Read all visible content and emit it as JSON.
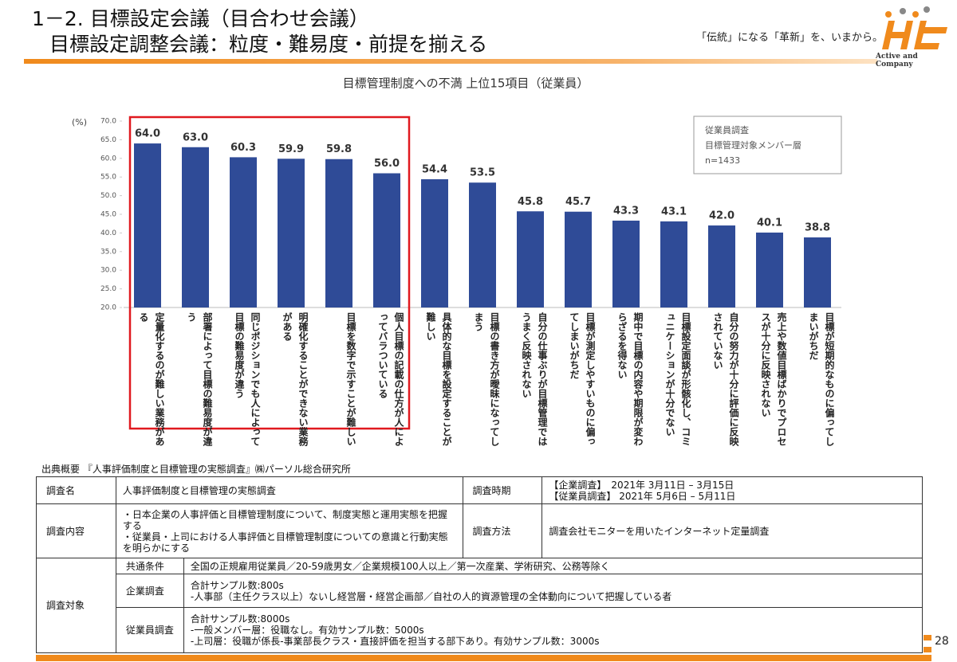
{
  "header": {
    "title": "1－2. 目標設定会議（目合わせ会議）",
    "subtitle": "目標設定調整会議：粒度・難易度・前提を揃える",
    "tagline": "「伝統」になる「革新」を、いまから。",
    "logo_text": "Active and Company",
    "page_number": "28"
  },
  "chart_data": {
    "type": "bar",
    "title": "目標管理制度への不満 上位15項目（従業員）",
    "y_unit": "(%)",
    "categories": [
      "定量化するのが難しい業務がある",
      "部署によって目標の難易度が違う",
      "同じポジションでも人によって目標の難易度が違う",
      "明確化することができない業務がある",
      "目標を数字で示すことが難しい",
      "個人目標の記載の仕方が人によってバラついている",
      "具体的な目標を設定することが難しい",
      "目標の書き方が曖昧になってしまう",
      "自分の仕事ぶりが目標管理ではうまく反映されない",
      "目標が測定しやすいものに偏ってしまいがちだ",
      "期中で目標の内容や期限が変わらざるを得ない",
      "目標設定面談が形骸化し、コミュニケーションが十分でない",
      "自分の努力が十分に評価に反映されていない",
      "売上や数値目標ばかりでプロセスが十分に反映されない",
      "目標が短期的なものに偏ってしまいがちだ"
    ],
    "values": [
      64.0,
      63.0,
      60.3,
      59.9,
      59.8,
      56.0,
      54.4,
      53.5,
      45.8,
      45.7,
      43.3,
      43.1,
      42.0,
      40.1,
      38.8
    ],
    "value_labels": [
      "64.0",
      "63.0",
      "60.3",
      "59.9",
      "59.8",
      "56.0",
      "54.4",
      "53.5",
      "45.8",
      "45.7",
      "43.3",
      "43.1",
      "42.0",
      "40.1",
      "38.8"
    ],
    "color": "#2f4b97",
    "ylim": [
      20,
      70
    ],
    "yticks": [
      {
        "value": 20,
        "label": "20.0"
      },
      {
        "value": 25,
        "label": "25.0"
      },
      {
        "value": 30,
        "label": "30.0"
      },
      {
        "value": 35,
        "label": "35.0"
      },
      {
        "value": 40,
        "label": "40.0"
      },
      {
        "value": 45,
        "label": "45.0"
      },
      {
        "value": 50,
        "label": "50.0"
      },
      {
        "value": 55,
        "label": "55.0"
      },
      {
        "value": 60,
        "label": "60.0"
      },
      {
        "value": 65,
        "label": "65.0"
      },
      {
        "value": 70,
        "label": "70.0"
      }
    ],
    "legend_lines": [
      "従業員調査",
      "目標管理対象メンバー層",
      "n=1433"
    ]
  },
  "source": "出典概要 『人事評価制度と目標管理の実態調査』㈱パーソル総合研究所",
  "table": {
    "name_label": "調査名",
    "name": "人事評価制度と目標管理の実態調査",
    "period_label": "調査時期",
    "period": [
      "【企業調査】　2021年 3月11日 – 3月15日",
      "【従業員調査】 2021年 5月6日 – 5月11日"
    ],
    "content_label": "調査内容",
    "content": [
      "・日本企業の人事評価と目標管理制度について、制度実態と運用実態を把握する",
      "・従業員・上司における人事評価と目標管理制度についての意識と行動実態を明らかにする"
    ],
    "method_label": "調査方法",
    "method": "調査会社モニターを用いたインターネット定量調査",
    "target_label": "調査対象",
    "targets": [
      {
        "label": "共通条件",
        "lines": [
          "全国の正規雇用従業員／20-59歳男女／企業規模100人以上／第一次産業、学術研究、公務等除く"
        ]
      },
      {
        "label": "企業調査",
        "lines": [
          "合計サンプル数:800s",
          "-人事部（主任クラス以上）ないし経営層・経営企画部／自社の人的資源管理の全体動向について把握している者"
        ]
      },
      {
        "label": "従業員調査",
        "lines": [
          "合計サンプル数:8000s",
          "-一般メンバー層：役職なし。有効サンプル数：5000s",
          "-上司層：役職が係長-事業部長クラス・直接評価を担当する部下あり。有効サンプル数：3000s"
        ]
      }
    ]
  }
}
